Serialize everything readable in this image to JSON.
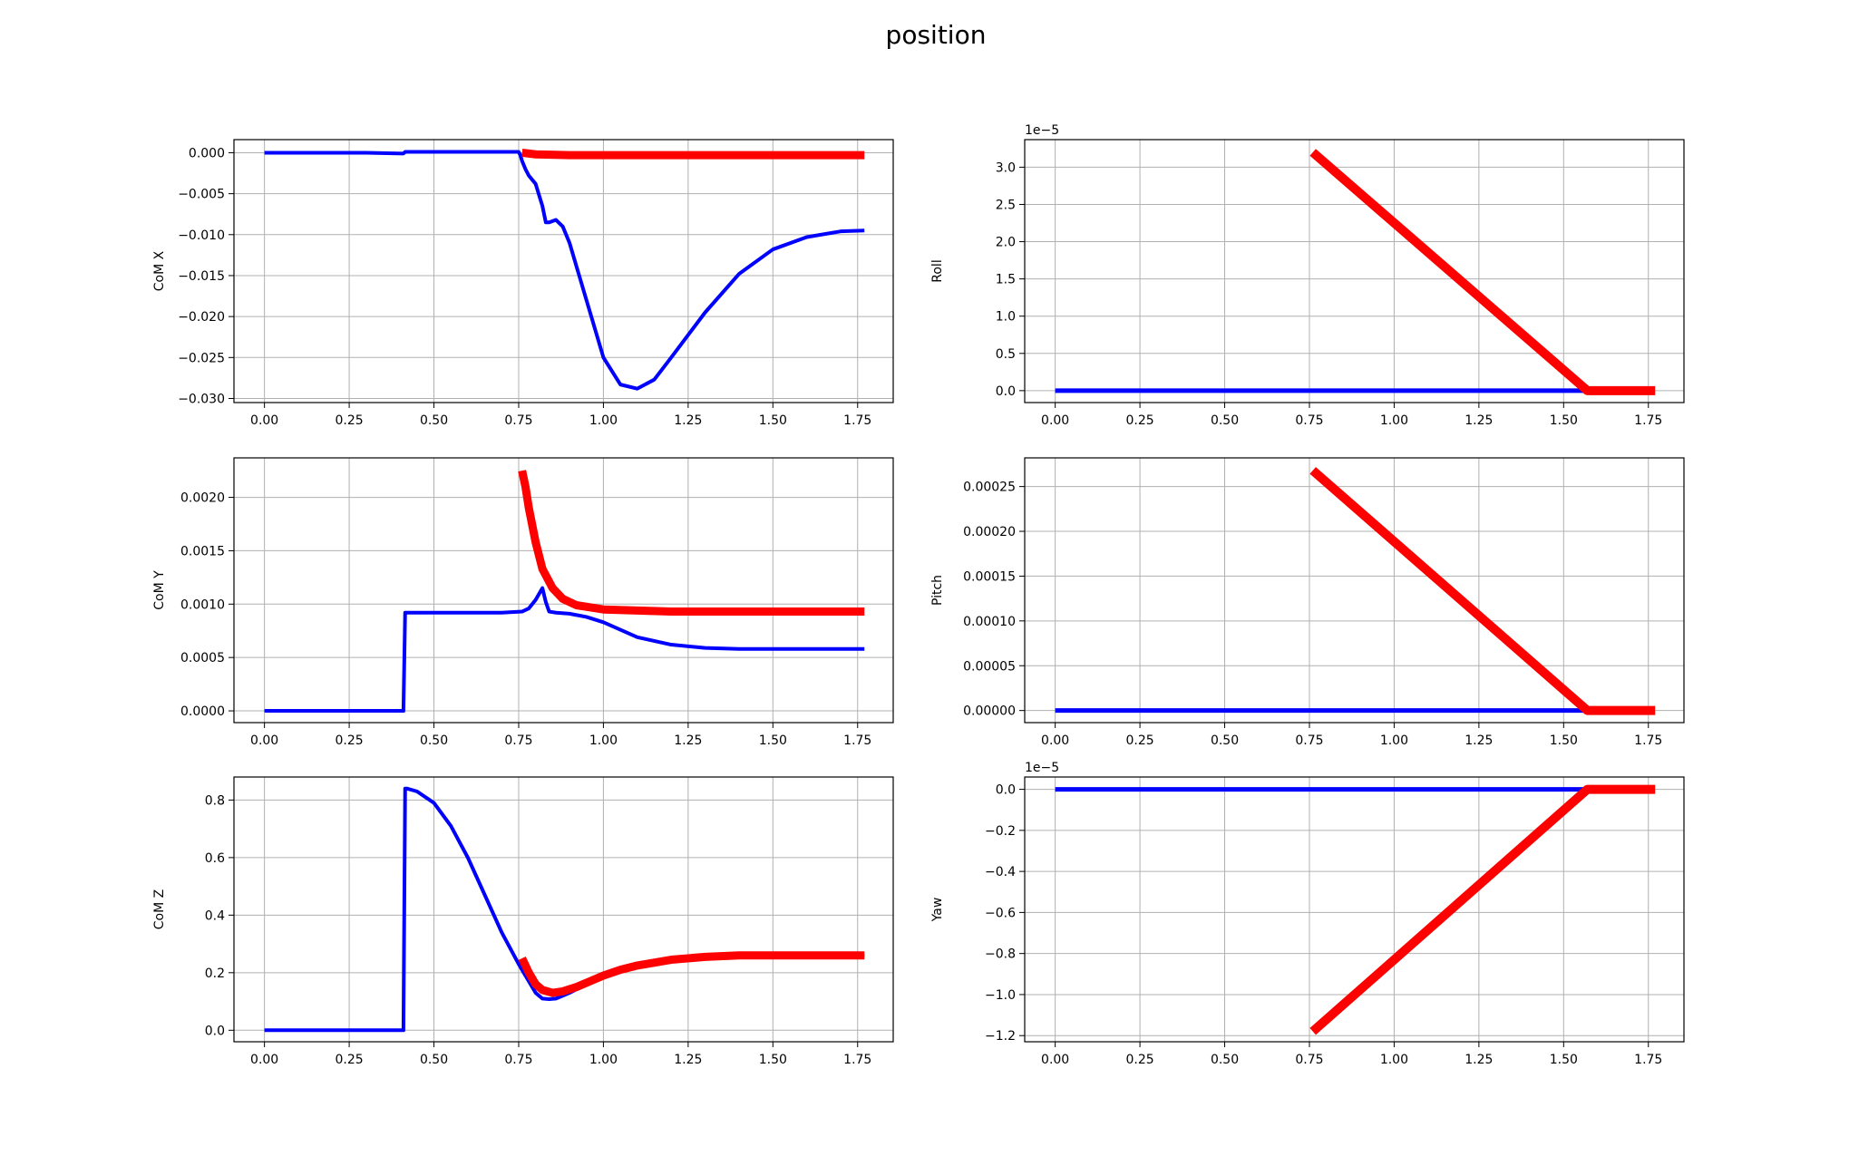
{
  "figure": {
    "title": "position"
  },
  "colors": {
    "blue": "#0000ff",
    "red": "#ff0000",
    "grid": "#b0b0b0"
  },
  "chart_data": [
    {
      "type": "line",
      "ylabel": "CoM X",
      "offset_label": "",
      "xlim": [
        -0.09,
        1.855
      ],
      "ylim": [
        -0.0305,
        0.0016
      ],
      "xticks": [
        0.0,
        0.25,
        0.5,
        0.75,
        1.0,
        1.25,
        1.5,
        1.75
      ],
      "xtick_labels": [
        "0.00",
        "0.25",
        "0.50",
        "0.75",
        "1.00",
        "1.25",
        "1.50",
        "1.75"
      ],
      "yticks": [
        0.0,
        -0.005,
        -0.01,
        -0.015,
        -0.02,
        -0.025,
        -0.03
      ],
      "ytick_labels": [
        "0.000",
        "−0.005",
        "−0.010",
        "−0.015",
        "−0.020",
        "−0.025",
        "−0.030"
      ],
      "series": [
        {
          "color": "#0000ff",
          "width": 4,
          "x": [
            0,
            0.3,
            0.41,
            0.415,
            0.42,
            0.55,
            0.7,
            0.75,
            0.755,
            0.76,
            0.77,
            0.78,
            0.8,
            0.82,
            0.83,
            0.84,
            0.86,
            0.88,
            0.9,
            0.95,
            1.0,
            1.05,
            1.1,
            1.15,
            1.2,
            1.3,
            1.4,
            1.5,
            1.6,
            1.7,
            1.77
          ],
          "y": [
            0,
            0,
            -0.0001,
            0.0001,
            0.0001,
            0.0001,
            0.0001,
            0.0001,
            -0.0003,
            -0.001,
            -0.002,
            -0.0028,
            -0.0038,
            -0.0065,
            -0.0085,
            -0.0085,
            -0.0082,
            -0.009,
            -0.011,
            -0.018,
            -0.025,
            -0.0283,
            -0.0288,
            -0.0277,
            -0.025,
            -0.0195,
            -0.0148,
            -0.0118,
            -0.0103,
            -0.0096,
            -0.0095
          ]
        },
        {
          "color": "#ff0000",
          "width": 9,
          "x": [
            0.76,
            0.8,
            0.9,
            1.0,
            1.2,
            1.4,
            1.6,
            1.77
          ],
          "y": [
            0.0,
            -0.0002,
            -0.0003,
            -0.0003,
            -0.0003,
            -0.0003,
            -0.0003,
            -0.0003
          ]
        }
      ]
    },
    {
      "type": "line",
      "ylabel": "Roll",
      "offset_label": "1e−5",
      "xlim": [
        -0.09,
        1.855
      ],
      "ylim": [
        -0.16,
        3.37
      ],
      "xticks": [
        0.0,
        0.25,
        0.5,
        0.75,
        1.0,
        1.25,
        1.5,
        1.75
      ],
      "xtick_labels": [
        "0.00",
        "0.25",
        "0.50",
        "0.75",
        "1.00",
        "1.25",
        "1.50",
        "1.75"
      ],
      "yticks": [
        0.0,
        0.5,
        1.0,
        1.5,
        2.0,
        2.5,
        3.0
      ],
      "ytick_labels": [
        "0.0",
        "0.5",
        "1.0",
        "1.5",
        "2.0",
        "2.5",
        "3.0"
      ],
      "series": [
        {
          "color": "#0000ff",
          "width": 5,
          "x": [
            0,
            1.57
          ],
          "y": [
            0,
            0
          ]
        },
        {
          "color": "#ff0000",
          "width": 10,
          "x": [
            0.76,
            1.57,
            1.77
          ],
          "y": [
            3.2,
            0.0,
            0.0
          ]
        }
      ]
    },
    {
      "type": "line",
      "ylabel": "CoM Y",
      "offset_label": "",
      "xlim": [
        -0.09,
        1.855
      ],
      "ylim": [
        -0.00011,
        0.00237
      ],
      "xticks": [
        0.0,
        0.25,
        0.5,
        0.75,
        1.0,
        1.25,
        1.5,
        1.75
      ],
      "xtick_labels": [
        "0.00",
        "0.25",
        "0.50",
        "0.75",
        "1.00",
        "1.25",
        "1.50",
        "1.75"
      ],
      "yticks": [
        0.0,
        0.0005,
        0.001,
        0.0015,
        0.002
      ],
      "ytick_labels": [
        "0.0000",
        "0.0005",
        "0.0010",
        "0.0015",
        "0.0020"
      ],
      "series": [
        {
          "color": "#0000ff",
          "width": 4,
          "x": [
            0,
            0.41,
            0.415,
            0.42,
            0.5,
            0.6,
            0.7,
            0.76,
            0.78,
            0.8,
            0.82,
            0.83,
            0.84,
            0.86,
            0.9,
            0.95,
            1.0,
            1.05,
            1.1,
            1.2,
            1.3,
            1.4,
            1.5,
            1.6,
            1.77
          ],
          "y": [
            0,
            0,
            0.00092,
            0.00092,
            0.00092,
            0.00092,
            0.00092,
            0.00093,
            0.00096,
            0.00104,
            0.00115,
            0.00102,
            0.00093,
            0.00092,
            0.00091,
            0.00088,
            0.00083,
            0.00076,
            0.00069,
            0.00062,
            0.00059,
            0.00058,
            0.00058,
            0.00058,
            0.00058
          ]
        },
        {
          "color": "#ff0000",
          "width": 9,
          "x": [
            0.76,
            0.77,
            0.78,
            0.8,
            0.82,
            0.85,
            0.88,
            0.92,
            0.96,
            1.0,
            1.1,
            1.2,
            1.4,
            1.6,
            1.77
          ],
          "y": [
            0.00225,
            0.0021,
            0.0019,
            0.00158,
            0.00133,
            0.00115,
            0.00105,
            0.00099,
            0.00097,
            0.00095,
            0.00094,
            0.00093,
            0.00093,
            0.00093,
            0.00093
          ]
        }
      ]
    },
    {
      "type": "line",
      "ylabel": "Pitch",
      "offset_label": "",
      "xlim": [
        -0.09,
        1.855
      ],
      "ylim": [
        -1.35e-05,
        0.000282
      ],
      "xticks": [
        0.0,
        0.25,
        0.5,
        0.75,
        1.0,
        1.25,
        1.5,
        1.75
      ],
      "xtick_labels": [
        "0.00",
        "0.25",
        "0.50",
        "0.75",
        "1.00",
        "1.25",
        "1.50",
        "1.75"
      ],
      "yticks": [
        0.0,
        5e-05,
        0.0001,
        0.00015,
        0.0002,
        0.00025
      ],
      "ytick_labels": [
        "0.00000",
        "0.00005",
        "0.00010",
        "0.00015",
        "0.00020",
        "0.00025"
      ],
      "series": [
        {
          "color": "#0000ff",
          "width": 5,
          "x": [
            0,
            1.57
          ],
          "y": [
            0,
            0
          ]
        },
        {
          "color": "#ff0000",
          "width": 10,
          "x": [
            0.76,
            1.57,
            1.77
          ],
          "y": [
            0.000268,
            0.0,
            0.0
          ]
        }
      ]
    },
    {
      "type": "line",
      "ylabel": "CoM Z",
      "offset_label": "",
      "xlim": [
        -0.09,
        1.855
      ],
      "ylim": [
        -0.04,
        0.88
      ],
      "xticks": [
        0.0,
        0.25,
        0.5,
        0.75,
        1.0,
        1.25,
        1.5,
        1.75
      ],
      "xtick_labels": [
        "0.00",
        "0.25",
        "0.50",
        "0.75",
        "1.00",
        "1.25",
        "1.50",
        "1.75"
      ],
      "yticks": [
        0.0,
        0.2,
        0.4,
        0.6,
        0.8
      ],
      "ytick_labels": [
        "0.0",
        "0.2",
        "0.4",
        "0.6",
        "0.8"
      ],
      "series": [
        {
          "color": "#0000ff",
          "width": 4,
          "x": [
            0,
            0.41,
            0.415,
            0.42,
            0.45,
            0.5,
            0.55,
            0.6,
            0.65,
            0.7,
            0.75,
            0.8,
            0.82,
            0.84,
            0.86,
            0.9,
            0.95,
            1.0,
            1.05,
            1.1,
            1.2,
            1.3,
            1.4,
            1.5,
            1.6,
            1.77
          ],
          "y": [
            0,
            0,
            0.84,
            0.84,
            0.83,
            0.79,
            0.71,
            0.6,
            0.47,
            0.34,
            0.23,
            0.13,
            0.11,
            0.108,
            0.11,
            0.13,
            0.16,
            0.19,
            0.21,
            0.23,
            0.245,
            0.255,
            0.26,
            0.26,
            0.26,
            0.26
          ]
        },
        {
          "color": "#ff0000",
          "width": 9,
          "x": [
            0.76,
            0.78,
            0.8,
            0.82,
            0.85,
            0.88,
            0.92,
            0.96,
            1.0,
            1.05,
            1.1,
            1.2,
            1.3,
            1.4,
            1.5,
            1.6,
            1.77
          ],
          "y": [
            0.25,
            0.2,
            0.16,
            0.14,
            0.13,
            0.135,
            0.15,
            0.17,
            0.19,
            0.21,
            0.225,
            0.245,
            0.255,
            0.26,
            0.26,
            0.26,
            0.26
          ]
        }
      ]
    },
    {
      "type": "line",
      "ylabel": "Yaw",
      "offset_label": "1e−5",
      "xlim": [
        -0.09,
        1.855
      ],
      "ylim": [
        -1.23,
        0.06
      ],
      "xticks": [
        0.0,
        0.25,
        0.5,
        0.75,
        1.0,
        1.25,
        1.5,
        1.75
      ],
      "xtick_labels": [
        "0.00",
        "0.25",
        "0.50",
        "0.75",
        "1.00",
        "1.25",
        "1.50",
        "1.75"
      ],
      "yticks": [
        0.0,
        -0.2,
        -0.4,
        -0.6,
        -0.8,
        -1.0,
        -1.2
      ],
      "ytick_labels": [
        "0.0",
        "−0.2",
        "−0.4",
        "−0.6",
        "−0.8",
        "−1.0",
        "−1.2"
      ],
      "series": [
        {
          "color": "#0000ff",
          "width": 5,
          "x": [
            0,
            1.57
          ],
          "y": [
            0,
            0
          ]
        },
        {
          "color": "#ff0000",
          "width": 10,
          "x": [
            0.76,
            1.57,
            1.77
          ],
          "y": [
            -1.18,
            0.0,
            0.0
          ]
        }
      ]
    }
  ]
}
